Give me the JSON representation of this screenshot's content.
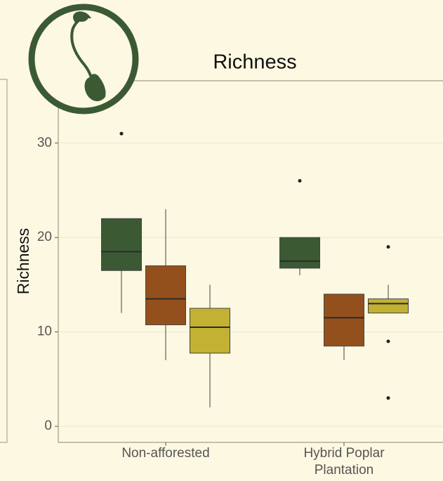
{
  "chart_data": {
    "type": "boxplot",
    "title": "Richness",
    "y_label": "Richness",
    "categories": [
      "Non-afforested",
      "Hybrid Poplar\nPlantation"
    ],
    "ylim": [
      -1.7,
      36.6
    ],
    "yticks": [
      0,
      10,
      20,
      30
    ],
    "grid": true,
    "series": [
      {
        "color": "#3b5a34",
        "values": [
          {
            "min": 12,
            "q1": 16.5,
            "median": 18.5,
            "q3": 22,
            "max": 22,
            "outliers": [
              31
            ]
          },
          {
            "min": 16,
            "q1": 16.75,
            "median": 17.5,
            "q3": 20,
            "max": 20,
            "outliers": [
              26
            ]
          }
        ]
      },
      {
        "color": "#94501c",
        "values": [
          {
            "min": 7,
            "q1": 10.75,
            "median": 13.5,
            "q3": 17,
            "max": 23,
            "outliers": []
          },
          {
            "min": 7,
            "q1": 8.5,
            "median": 11.5,
            "q3": 14,
            "max": 14,
            "outliers": []
          }
        ]
      },
      {
        "color": "#c2b133",
        "values": [
          {
            "min": 2,
            "q1": 7.75,
            "median": 10.5,
            "q3": 12.5,
            "max": 15,
            "outliers": []
          },
          {
            "min": 12,
            "q1": 12,
            "median": 13,
            "q3": 13.5,
            "max": 15,
            "outliers": [
              19,
              9,
              3
            ]
          }
        ]
      }
    ]
  }
}
